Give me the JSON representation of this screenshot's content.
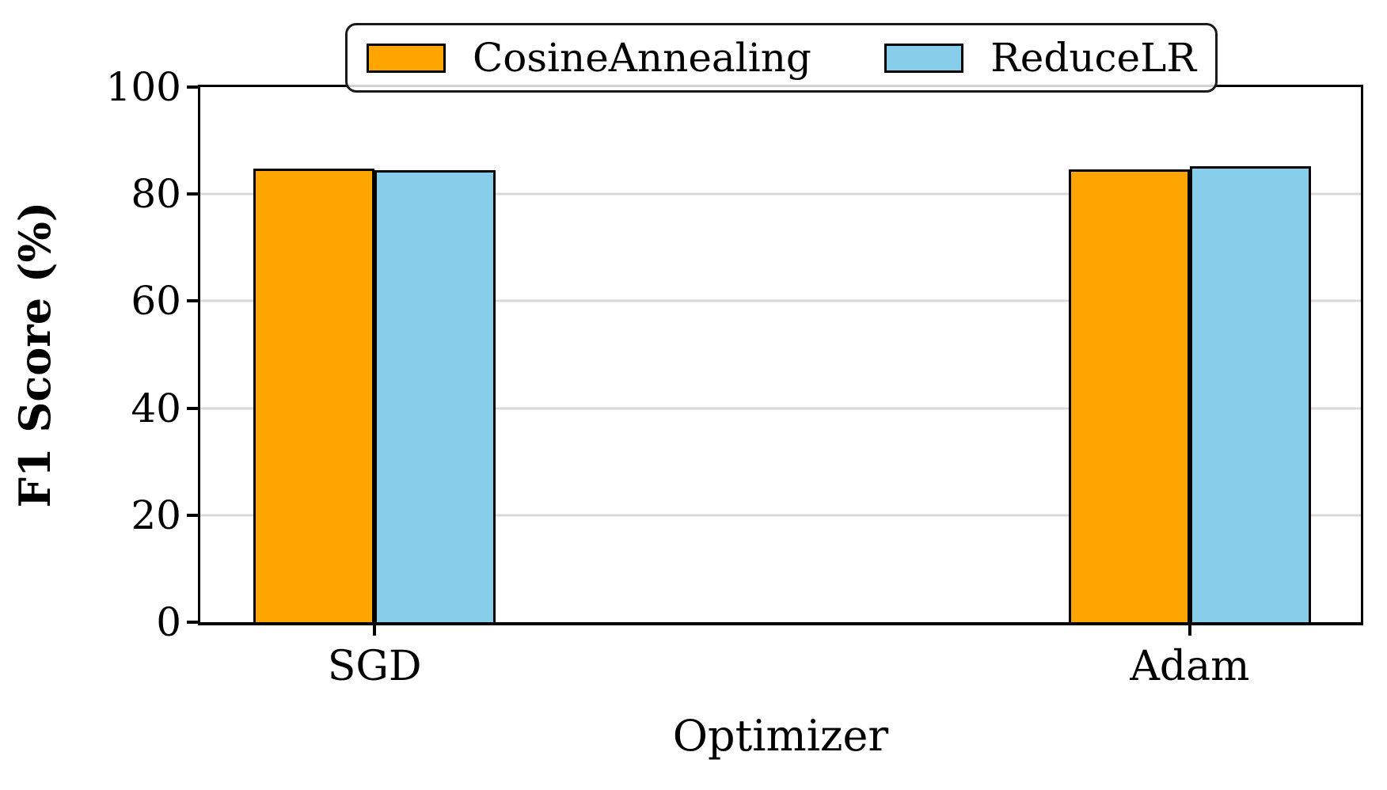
{
  "chart_data": {
    "type": "bar",
    "title": "",
    "xlabel": "Optimizer",
    "ylabel": "F1 Score (%)",
    "categories": [
      "SGD",
      "Adam"
    ],
    "series": [
      {
        "name": "CosineAnnealing",
        "color": "#FFA500",
        "values": [
          84.8,
          84.6
        ]
      },
      {
        "name": "ReduceLR",
        "color": "#87CEEB",
        "values": [
          84.4,
          85.2
        ]
      }
    ],
    "ylim": [
      0,
      100
    ],
    "yticks": [
      0,
      20,
      40,
      60,
      80,
      100
    ],
    "grid": "horizontal",
    "grid_color": "#d9d9d9",
    "bar_edge_color": "#000000",
    "axis_color": "#000000",
    "legend_position": "upper center",
    "legend_labels": [
      "CosineAnnealing",
      "ReduceLR"
    ]
  }
}
